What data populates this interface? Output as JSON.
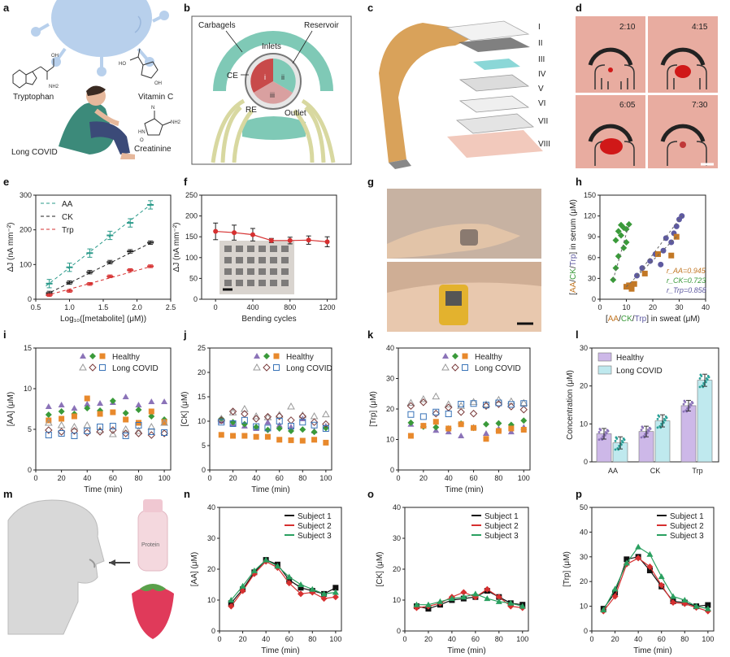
{
  "panels": {
    "a": {
      "label": "a",
      "texts": [
        "Tryptophan",
        "Vitamin C",
        "Creatinine",
        "Long COVID"
      ],
      "struct_labels": [
        "OH",
        "HO",
        "NH2",
        "HN",
        "N",
        "O"
      ]
    },
    "b": {
      "label": "b",
      "carbagels": "Carbagels",
      "reservoir": "Reservoir",
      "inlets": "Inlets",
      "ce": "CE",
      "re": "RE",
      "outlet": "Outlet",
      "chambers": [
        "i",
        "ii",
        "iii"
      ]
    },
    "c": {
      "label": "c",
      "layers": [
        "I",
        "II",
        "III",
        "IV",
        "V",
        "VI",
        "VII",
        "VIII"
      ]
    },
    "d": {
      "label": "d",
      "times": [
        "2:10",
        "4:15",
        "6:05",
        "7:30"
      ]
    },
    "g": {
      "label": "g"
    },
    "m": {
      "label": "m",
      "bottle": "Protein"
    }
  },
  "colors": {
    "aa": "#8b73b8",
    "ck": "#3a9a3a",
    "trp": "#e8892c",
    "red": "#d63030",
    "teal": "#2aa198",
    "lc": "#6b7fa0",
    "bar_healthy": "#cdb8e8",
    "bar_lc": "#bfe9ee"
  },
  "chart_data": [
    {
      "id": "e",
      "type": "scatter",
      "panel_label": "e",
      "xlabel": "Log₁₀([metabolite] (μM))",
      "ylabel": "ΔJ (nA mm⁻²)",
      "xlim": [
        0.5,
        2.5
      ],
      "ylim": [
        0,
        300
      ],
      "xticks": [
        "0.5",
        "1.0",
        "1.5",
        "2.0",
        "2.5"
      ],
      "yticks": [
        "0",
        "100",
        "200",
        "300"
      ],
      "legend_position": "top-left",
      "x": [
        0.7,
        1.0,
        1.3,
        1.6,
        1.9,
        2.2
      ],
      "series": [
        {
          "name": "AA",
          "values": [
            45,
            92,
            133,
            184,
            220,
            272
          ],
          "err": 12
        },
        {
          "name": "CK",
          "values": [
            18,
            48,
            78,
            107,
            138,
            163
          ],
          "err": 5
        },
        {
          "name": "Trp",
          "values": [
            12,
            24,
            44,
            66,
            84,
            95
          ],
          "err": 4
        }
      ]
    },
    {
      "id": "f",
      "type": "line",
      "panel_label": "f",
      "xlabel": "Bending cycles",
      "ylabel": "ΔJ (nA mm⁻²)",
      "xlim": [
        -150,
        1300
      ],
      "ylim": [
        0,
        250
      ],
      "xticks": [
        "0",
        "400",
        "800",
        "1200"
      ],
      "yticks": [
        "0",
        "50",
        "100",
        "150",
        "200",
        "250"
      ],
      "x": [
        0,
        200,
        400,
        600,
        800,
        1000,
        1200
      ],
      "values": [
        163,
        160,
        155,
        141,
        141,
        142,
        138
      ],
      "err": [
        20,
        18,
        15,
        5,
        8,
        10,
        12
      ]
    },
    {
      "id": "h",
      "type": "scatter",
      "panel_label": "h",
      "xlabel_parts": [
        "[",
        "AA",
        "/",
        "CK",
        "/",
        "Trp",
        "] in sweat (μM)"
      ],
      "ylabel_parts": [
        "[",
        "AA",
        "/",
        "CK",
        "/",
        "Trp",
        "] in serum (μM)"
      ],
      "xlim": [
        0,
        40
      ],
      "ylim": [
        0,
        150
      ],
      "xticks": [
        "0",
        "10",
        "20",
        "30",
        "40"
      ],
      "yticks": [
        "0",
        "30",
        "60",
        "90",
        "120",
        "150"
      ],
      "annotations": [
        "r_AA=0.945",
        "r_CK=0.723",
        "r_Trp=0.858"
      ],
      "series": [
        {
          "name": "CK",
          "x": [
            5,
            6,
            6,
            7,
            7,
            8,
            8,
            9,
            9,
            10,
            10,
            11
          ],
          "y": [
            28,
            45,
            85,
            98,
            62,
            107,
            92,
            74,
            103,
            82,
            101,
            108
          ]
        },
        {
          "name": "Trp",
          "x": [
            14,
            16,
            19,
            21,
            23,
            24,
            25,
            27,
            28,
            29,
            30,
            31
          ],
          "y": [
            34,
            45,
            55,
            65,
            50,
            70,
            88,
            82,
            95,
            105,
            115,
            120
          ]
        },
        {
          "name": "AA",
          "x": [
            10,
            11,
            12,
            13,
            17,
            22,
            27,
            29
          ],
          "y": [
            18,
            20,
            15,
            22,
            37,
            65,
            63,
            90
          ]
        }
      ]
    },
    {
      "id": "i",
      "type": "scatter",
      "panel_label": "i",
      "xlabel": "Time (min)",
      "ylabel": "[AA] (μM)",
      "xlim": [
        0,
        105
      ],
      "ylim": [
        0,
        15
      ],
      "xticks": [
        "0",
        "20",
        "40",
        "60",
        "80",
        "100"
      ],
      "yticks": [
        "0",
        "5",
        "10",
        "15"
      ],
      "legend": {
        "healthy": "Healthy",
        "long_covid": "Long COVID"
      },
      "x": [
        10,
        20,
        30,
        40,
        50,
        60,
        70,
        80,
        90,
        100
      ],
      "healthy": [
        [
          7.8,
          8.0,
          7.6,
          8.1,
          8.2,
          8.3,
          9.0,
          8.0,
          8.4,
          8.4
        ],
        [
          6.8,
          7.2,
          6.9,
          7.6,
          7.3,
          8.5,
          7.0,
          7.4,
          6.6,
          6.2
        ],
        [
          6.1,
          6.3,
          6.6,
          8.8,
          6.9,
          7.1,
          6.2,
          5.8,
          7.2,
          5.9
        ]
      ],
      "long_covid": [
        [
          5.8,
          5.5,
          5.3,
          5.5,
          4.9,
          4.4,
          5.0,
          4.8,
          5.3,
          5.8
        ],
        [
          4.9,
          4.7,
          4.8,
          4.6,
          4.7,
          4.9,
          4.5,
          4.5,
          4.3,
          4.5
        ],
        [
          4.3,
          4.5,
          4.2,
          4.8,
          5.3,
          5.4,
          4.2,
          5.5,
          4.7,
          4.6
        ]
      ]
    },
    {
      "id": "j",
      "type": "scatter",
      "panel_label": "j",
      "xlabel": "Time (min)",
      "ylabel": "[CK] (μM)",
      "xlim": [
        0,
        105
      ],
      "ylim": [
        0,
        25
      ],
      "xticks": [
        "0",
        "20",
        "40",
        "60",
        "80",
        "100"
      ],
      "yticks": [
        "0",
        "5",
        "10",
        "15",
        "20",
        "25"
      ],
      "legend": {
        "healthy": "Healthy",
        "long_covid": "Long COVID"
      },
      "x": [
        10,
        20,
        30,
        40,
        50,
        60,
        70,
        80,
        90,
        100
      ],
      "healthy": [
        [
          10.0,
          9.5,
          9.0,
          8.5,
          9.8,
          9.2,
          8.8,
          10.5,
          8.0,
          9.0
        ],
        [
          10.5,
          9.8,
          9.4,
          8.8,
          8.2,
          8.5,
          8.0,
          8.3,
          7.8,
          8.6
        ],
        [
          7.2,
          7.0,
          7.0,
          6.8,
          6.8,
          6.2,
          6.1,
          6.0,
          6.2,
          5.6
        ]
      ],
      "long_covid": [
        [
          10.5,
          11.8,
          12.5,
          11.0,
          10.8,
          11.3,
          13.0,
          11.2,
          11.0,
          11.4
        ],
        [
          10.2,
          12.0,
          11.5,
          10.5,
          10.9,
          11.0,
          10.2,
          11.0,
          9.8,
          9.4
        ],
        [
          9.8,
          9.5,
          10.2,
          8.9,
          8.6,
          10.0,
          9.0,
          9.8,
          9.2,
          8.5
        ]
      ]
    },
    {
      "id": "k",
      "type": "scatter",
      "panel_label": "k",
      "xlabel": "Time (min)",
      "ylabel": "[Trp] (μM)",
      "xlim": [
        0,
        105
      ],
      "ylim": [
        0,
        40
      ],
      "xticks": [
        "0",
        "20",
        "40",
        "60",
        "80",
        "100"
      ],
      "yticks": [
        "0",
        "10",
        "20",
        "30",
        "40"
      ],
      "legend": {
        "healthy": "Healthy",
        "long_covid": "Long COVID"
      },
      "x": [
        10,
        20,
        30,
        40,
        50,
        60,
        70,
        80,
        90,
        100
      ],
      "healthy": [
        [
          15.0,
          14.5,
          13.0,
          12.5,
          11.2,
          14.0,
          12.0,
          13.5,
          12.5,
          14.0
        ],
        [
          15.5,
          14.2,
          14.0,
          13.6,
          15.2,
          13.8,
          15.0,
          15.3,
          14.8,
          16.2
        ],
        [
          11.2,
          14.5,
          15.8,
          13.6,
          15.0,
          13.8,
          10.2,
          12.8,
          13.6,
          13.2
        ]
      ],
      "long_covid": [
        [
          22.0,
          23.2,
          24.1,
          21.5,
          21.0,
          22.3,
          21.5,
          23.0,
          22.5,
          22.0
        ],
        [
          21.0,
          22.2,
          18.5,
          20.5,
          19.0,
          18.5,
          21.0,
          21.6,
          20.8,
          19.8
        ],
        [
          18.2,
          17.5,
          19.0,
          18.4,
          21.6,
          21.8,
          21.3,
          22.0,
          21.5,
          21.8
        ]
      ]
    },
    {
      "id": "l",
      "type": "bar",
      "panel_label": "l",
      "ylabel": "Concentration (μM)",
      "ylim": [
        0,
        30
      ],
      "yticks": [
        "0",
        "10",
        "20",
        "30"
      ],
      "categories": [
        "AA",
        "CK",
        "Trp"
      ],
      "series": [
        {
          "name": "Healthy",
          "values": [
            7.4,
            8.0,
            14.8
          ],
          "sd": 1.4
        },
        {
          "name": "Long COVID",
          "values": [
            5.0,
            10.8,
            21.5
          ],
          "sd": 1.6
        }
      ]
    },
    {
      "id": "n",
      "type": "line",
      "panel_label": "n",
      "xlabel": "Time (min)",
      "ylabel": "[AA] (μM)",
      "xlim": [
        0,
        105
      ],
      "ylim": [
        0,
        40
      ],
      "xticks": [
        "0",
        "20",
        "40",
        "60",
        "80",
        "100"
      ],
      "yticks": [
        "0",
        "10",
        "20",
        "30",
        "40"
      ],
      "x": [
        10,
        20,
        30,
        40,
        50,
        60,
        70,
        80,
        90,
        100
      ],
      "series": [
        {
          "name": "Subject 1",
          "values": [
            9.0,
            13.5,
            19.0,
            23.0,
            21.5,
            16.5,
            14.0,
            13.0,
            12.0,
            14.0
          ]
        },
        {
          "name": "Subject 2",
          "values": [
            8.0,
            13.0,
            18.5,
            22.5,
            20.5,
            15.5,
            12.0,
            12.5,
            10.5,
            11.0
          ]
        },
        {
          "name": "Subject 3",
          "values": [
            10.0,
            14.5,
            19.5,
            23.0,
            21.0,
            17.5,
            15.0,
            13.5,
            12.0,
            12.5
          ]
        }
      ]
    },
    {
      "id": "o",
      "type": "line",
      "panel_label": "o",
      "xlabel": "Time (min)",
      "ylabel": "[CK] (μM)",
      "xlim": [
        0,
        105
      ],
      "ylim": [
        0,
        40
      ],
      "xticks": [
        "0",
        "20",
        "40",
        "60",
        "80",
        "100"
      ],
      "yticks": [
        "0",
        "10",
        "20",
        "30",
        "40"
      ],
      "x": [
        10,
        20,
        30,
        40,
        50,
        60,
        70,
        80,
        90,
        100
      ],
      "series": [
        {
          "name": "Subject 1",
          "values": [
            8.0,
            7.2,
            8.5,
            10.0,
            10.5,
            11.0,
            13.0,
            11.0,
            9.0,
            8.5
          ]
        },
        {
          "name": "Subject 2",
          "values": [
            7.5,
            8.0,
            9.0,
            11.0,
            12.5,
            11.0,
            13.5,
            11.0,
            8.0,
            7.5
          ]
        },
        {
          "name": "Subject 3",
          "values": [
            8.5,
            8.5,
            9.5,
            10.5,
            11.0,
            12.0,
            10.5,
            9.5,
            9.0,
            8.0
          ]
        }
      ]
    },
    {
      "id": "p",
      "type": "line",
      "panel_label": "p",
      "xlabel": "Time (min)",
      "ylabel": "[Trp] (μM)",
      "xlim": [
        0,
        105
      ],
      "ylim": [
        0,
        50
      ],
      "xticks": [
        "0",
        "20",
        "40",
        "60",
        "80",
        "100"
      ],
      "yticks": [
        "0",
        "10",
        "20",
        "30",
        "40",
        "50"
      ],
      "x": [
        10,
        20,
        30,
        40,
        50,
        60,
        70,
        80,
        90,
        100
      ],
      "series": [
        {
          "name": "Subject 1",
          "values": [
            9.0,
            15.5,
            29.0,
            30.0,
            24.5,
            18.0,
            12.0,
            11.5,
            10.0,
            10.5
          ]
        },
        {
          "name": "Subject 2",
          "values": [
            8.0,
            14.0,
            27.0,
            29.5,
            26.0,
            18.5,
            11.5,
            11.0,
            9.5,
            8.0
          ]
        },
        {
          "name": "Subject 3",
          "values": [
            8.5,
            17.0,
            27.5,
            34.0,
            31.0,
            22.0,
            14.0,
            12.5,
            10.0,
            9.0
          ]
        }
      ]
    }
  ]
}
